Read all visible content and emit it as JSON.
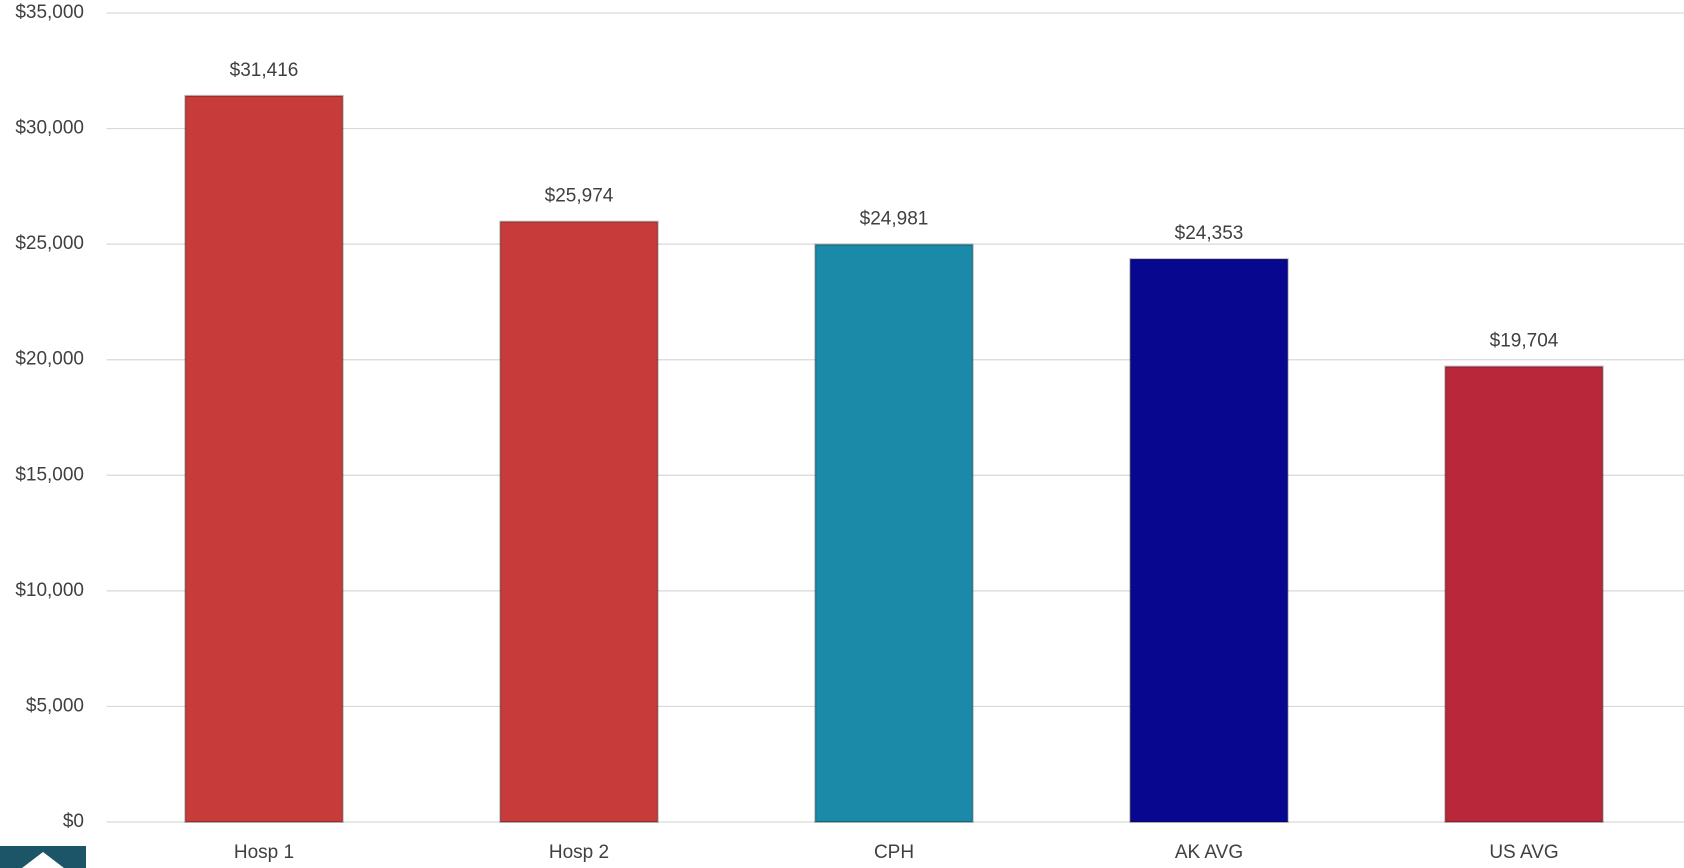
{
  "chart_data": {
    "type": "bar",
    "categories": [
      "Hosp 1",
      "Hosp 2",
      "CPH",
      "AK AVG",
      "US AVG"
    ],
    "values": [
      31416,
      25974,
      24981,
      24353,
      19704
    ],
    "value_labels": [
      "$31,416",
      "$25,974",
      "$24,981",
      "$24,353",
      "$19,704"
    ],
    "colors": [
      "#c73c3b",
      "#c73c3b",
      "#1a8aa8",
      "#07078f",
      "#b8283a"
    ],
    "ylim": [
      0,
      35000
    ],
    "yticks": [
      {
        "value": 0,
        "label": "$0"
      },
      {
        "value": 5000,
        "label": "$5,000"
      },
      {
        "value": 10000,
        "label": "$10,000"
      },
      {
        "value": 15000,
        "label": "$15,000"
      },
      {
        "value": 20000,
        "label": "$20,000"
      },
      {
        "value": 25000,
        "label": "$25,000"
      },
      {
        "value": 30000,
        "label": "$30,000"
      },
      {
        "value": 35000,
        "label": "$35,000"
      }
    ],
    "grid": true
  }
}
